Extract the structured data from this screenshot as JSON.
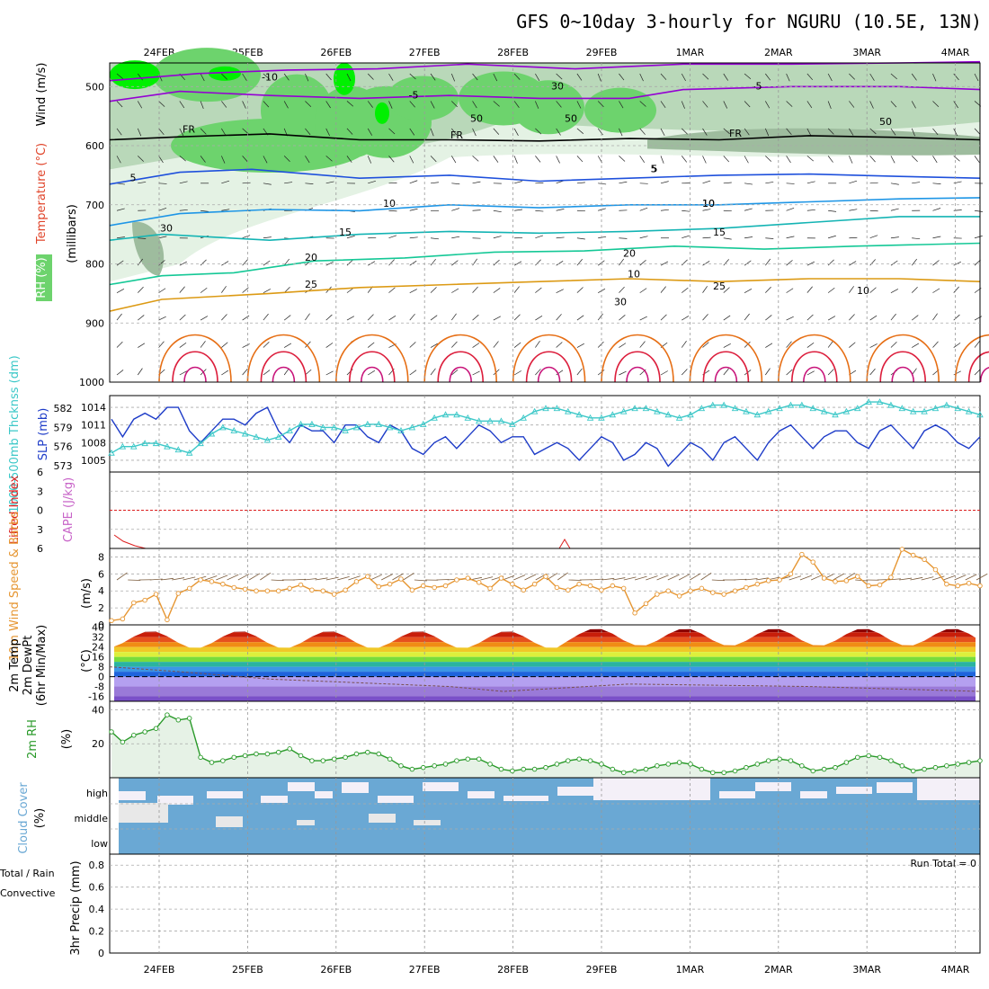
{
  "title": "GFS 0~10day 3-hourly for NGURU (10.5E, 13N)",
  "dates": [
    "24FEB",
    "25FEB",
    "26FEB",
    "27FEB",
    "28FEB",
    "29FEB",
    "1MAR",
    "2MAR",
    "3MAR",
    "4MAR"
  ],
  "colors": {
    "rh_light": "#e4f2e4",
    "rh_mid": "#b9d8b9",
    "rh_dark": "#9ebc9e",
    "rh_bright": "#6dd36d",
    "rh_vivid": "#00f000",
    "temp_neg": "#9400d3",
    "temp_fr": "#000000",
    "temp_5": "#1e50dc",
    "temp_10": "#1e96e6",
    "temp_15": "#14b4b4",
    "temp_20": "#14c896",
    "temp_25": "#dc9a14",
    "temp_30": "#e66e14",
    "temp_35": "#dc1e3c",
    "temp_40": "#c8147a",
    "thickness": "#3cc8c8",
    "slp": "#1e3cc8",
    "cape": "#c864c8",
    "lifted": "#dc1e1e",
    "wind": "#e69632",
    "barb": "#7a5a3a",
    "rh2m": "#2a9a2a",
    "cloud": "#6aa8d4",
    "cloud_clear": "#f4f0f8",
    "precip_total": "#20a020",
    "precip_conv": "#e02020"
  },
  "panels": {
    "upper": {
      "label_rh": "RH (%)",
      "label_temp": "Temperature (°C)",
      "label_wind": "Wind (m/s)",
      "ylabel": "(millibars)",
      "levels": [
        "500",
        "600",
        "700",
        "800",
        "900",
        "1000"
      ],
      "contour_labels": [
        "-10",
        "-5",
        "-5",
        "FR",
        "FR",
        "FR",
        "5",
        "5",
        "5",
        "10",
        "10",
        "10",
        "15",
        "15",
        "20",
        "20",
        "25",
        "25",
        "30",
        "50",
        "50",
        "50",
        "30",
        "30",
        "10",
        "10"
      ]
    },
    "slp": {
      "label_thick": "1000-500mb Thcknss (dm)",
      "label_slp": "SLP (mb)",
      "thick_ticks": [
        "582",
        "579",
        "576",
        "573"
      ],
      "slp_ticks": [
        "1014",
        "1011",
        "1008",
        "1005"
      ]
    },
    "cape": {
      "label_li": "Lifted Index",
      "label_cape": "CAPE (J/kg)",
      "ticks": [
        "-6",
        "-3",
        "0",
        "3",
        "6"
      ]
    },
    "wind": {
      "label": "10m Wind Speed & Barbs",
      "unit": "(m/s)",
      "ticks": [
        "8",
        "6",
        "4",
        "2",
        "0"
      ]
    },
    "temp2m": {
      "label_t": "2m Temp",
      "label_d": "2m DewPt",
      "label_m": "(6hr Min/Max)",
      "unit": "(°C)",
      "ticks": [
        "40",
        "32",
        "24",
        "16",
        "8",
        "0",
        "-8",
        "-16"
      ]
    },
    "rh2m": {
      "label": "2m RH",
      "unit": "(%)",
      "ticks": [
        "40",
        "20"
      ]
    },
    "cloud": {
      "label": "Cloud Cover",
      "unit": "(%)",
      "ticks": [
        "high",
        "middle",
        "low"
      ]
    },
    "precip": {
      "label_total": "Total / Rain",
      "label_conv": "Convective",
      "label": "3hr Precip (mm)",
      "ticks": [
        "0.8",
        "0.6",
        "0.4",
        "0.2",
        "0"
      ],
      "run_total": "Run Total = 0"
    }
  },
  "chart_data": [
    {
      "type": "line",
      "title": "SLP and 1000-500mb thickness",
      "series": [
        {
          "name": "SLP (mb)",
          "values": [
            1012,
            1009,
            1012,
            1013,
            1012,
            1014,
            1014,
            1010,
            1008,
            1010,
            1012,
            1012,
            1011,
            1013,
            1014,
            1010,
            1008,
            1011,
            1010,
            1010,
            1008,
            1011,
            1011,
            1009,
            1008,
            1011,
            1010,
            1007,
            1006,
            1008,
            1009,
            1007,
            1009,
            1011,
            1010,
            1008,
            1009,
            1009,
            1006,
            1007,
            1008,
            1007,
            1005,
            1007,
            1009,
            1008,
            1005,
            1006,
            1008,
            1007,
            1004,
            1006,
            1008,
            1007,
            1005,
            1008,
            1009,
            1007,
            1005,
            1008,
            1010,
            1011,
            1009,
            1007,
            1009,
            1010,
            1010,
            1008,
            1007,
            1010,
            1011,
            1009,
            1007,
            1010,
            1011,
            1010,
            1008,
            1007,
            1009
          ]
        },
        {
          "name": "1000-500mb Thickness (dm)",
          "values": [
            575,
            576,
            576,
            576.5,
            576.5,
            576,
            575.5,
            575,
            576.5,
            578,
            579,
            578.5,
            578,
            577.5,
            577,
            577.5,
            578.5,
            579.5,
            579.5,
            579,
            579,
            578.5,
            579,
            579.5,
            579.5,
            579,
            578.5,
            579,
            579.5,
            580.5,
            581,
            581,
            580.5,
            580,
            580,
            580,
            579.5,
            580.5,
            581.5,
            582,
            582,
            581.5,
            581,
            580.5,
            580.5,
            581,
            581.5,
            582,
            582,
            581.5,
            581,
            580.5,
            581,
            582,
            582.5,
            582.5,
            582,
            581.5,
            581,
            581.5,
            582,
            582.5,
            582.5,
            582,
            581.5,
            581,
            581.5,
            582,
            583,
            583,
            582.5,
            582,
            581.5,
            581.5,
            582,
            582.5,
            582,
            581.5,
            581
          ]
        }
      ],
      "ylim_slp": [
        1003,
        1016
      ],
      "ylim_thick": [
        572,
        584
      ]
    },
    {
      "type": "line",
      "title": "10m wind speed",
      "series": [
        {
          "name": "10m Wind Speed (m/s)",
          "values": [
            0.5,
            0.7,
            2.6,
            2.9,
            3.6,
            0.6,
            3.7,
            4.3,
            5.3,
            5.1,
            4.8,
            4.4,
            4.2,
            4.0,
            4.0,
            4.0,
            4.3,
            4.7,
            4.1,
            4.0,
            3.6,
            4.1,
            5.1,
            5.7,
            4.5,
            4.8,
            5.4,
            4.1,
            4.6,
            4.4,
            4.6,
            5.3,
            5.5,
            5.0,
            4.3,
            5.5,
            4.8,
            4.1,
            4.8,
            5.7,
            4.4,
            4.1,
            4.8,
            4.6,
            4.1,
            4.6,
            4.3,
            1.4,
            2.5,
            3.6,
            4.0,
            3.4,
            4.0,
            4.3,
            3.8,
            3.6,
            4.0,
            4.4,
            4.8,
            5.2,
            5.3,
            6.0,
            8.3,
            7.4,
            5.5,
            5.1,
            5.2,
            5.7,
            4.6,
            4.7,
            5.6,
            8.9,
            8.2,
            7.7,
            6.5,
            4.8,
            4.6,
            4.9,
            4.6
          ]
        }
      ],
      "ylim": [
        0,
        9
      ]
    },
    {
      "type": "line",
      "title": "2m RH",
      "series": [
        {
          "name": "2m RH (%)",
          "values": [
            27,
            21,
            25,
            27,
            29,
            37,
            34,
            35,
            12,
            9,
            10,
            12,
            13,
            14,
            14,
            15,
            17,
            13,
            10,
            10,
            11,
            12,
            14,
            15,
            14,
            11,
            7,
            5,
            6,
            7,
            8,
            10,
            11,
            11,
            8,
            5,
            4,
            5,
            5,
            6,
            8,
            10,
            11,
            10,
            8,
            5,
            3,
            4,
            5,
            7,
            8,
            9,
            8,
            5,
            3,
            3,
            4,
            6,
            8,
            10,
            11,
            10,
            7,
            4,
            5,
            6,
            9,
            12,
            13,
            12,
            10,
            7,
            4,
            5,
            6,
            7,
            8,
            9,
            10
          ]
        }
      ],
      "ylim": [
        0,
        45
      ]
    },
    {
      "type": "line",
      "title": "3hr precip",
      "series": [
        {
          "name": "Total / Rain",
          "values": [
            0,
            0,
            0,
            0,
            0,
            0,
            0,
            0,
            0,
            0
          ]
        },
        {
          "name": "Convective",
          "values": [
            0,
            0,
            0,
            0,
            0,
            0,
            0,
            0,
            0,
            0
          ]
        }
      ],
      "ylim": [
        0,
        0.9
      ]
    }
  ]
}
